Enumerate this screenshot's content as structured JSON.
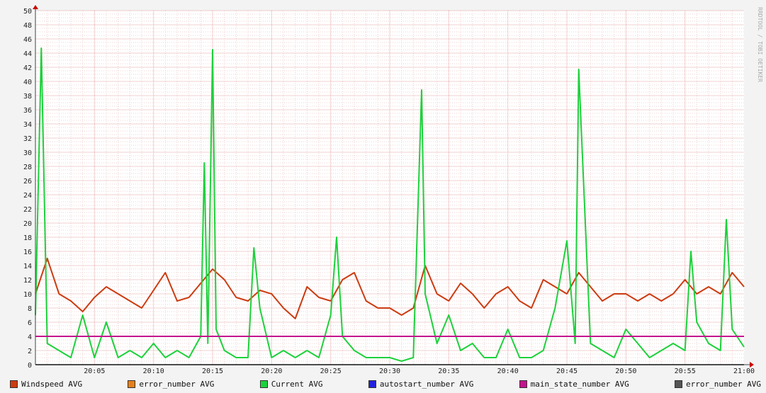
{
  "watermark": "RRDTOOL / TOBI OETIKER",
  "chart_data": {
    "type": "line",
    "title": "",
    "xlabel": "",
    "ylabel": "",
    "ylim": [
      0,
      50
    ],
    "yticks": [
      0,
      2,
      4,
      6,
      8,
      10,
      12,
      14,
      16,
      18,
      20,
      22,
      24,
      26,
      28,
      30,
      32,
      34,
      36,
      38,
      40,
      42,
      44,
      46,
      48,
      50
    ],
    "xlim": [
      "20:00",
      "21:00"
    ],
    "xticks": [
      "20:05",
      "20:10",
      "20:15",
      "20:20",
      "20:25",
      "20:30",
      "20:35",
      "20:40",
      "20:45",
      "20:50",
      "20:55",
      "21:00"
    ],
    "grid": true,
    "legend_position": "bottom",
    "series": [
      {
        "name": "Windspeed AVG",
        "color": "#cc3b10",
        "x": [
          "20:00",
          "20:01",
          "20:02",
          "20:03",
          "20:04",
          "20:05",
          "20:06",
          "20:07",
          "20:08",
          "20:09",
          "20:10",
          "20:11",
          "20:12",
          "20:13",
          "20:14",
          "20:15",
          "20:16",
          "20:17",
          "20:18",
          "20:19",
          "20:20",
          "20:21",
          "20:22",
          "20:23",
          "20:24",
          "20:25",
          "20:26",
          "20:27",
          "20:28",
          "20:29",
          "20:30",
          "20:31",
          "20:32",
          "20:33",
          "20:34",
          "20:35",
          "20:36",
          "20:37",
          "20:38",
          "20:39",
          "20:40",
          "20:41",
          "20:42",
          "20:43",
          "20:44",
          "20:45",
          "20:46",
          "20:47",
          "20:48",
          "20:49",
          "20:50",
          "20:51",
          "20:52",
          "20:53",
          "20:54",
          "20:55",
          "20:56",
          "20:57",
          "20:58",
          "20:59",
          "21:00"
        ],
        "values": [
          10,
          15,
          10,
          9,
          7.5,
          9.5,
          11,
          10,
          9,
          8,
          10.5,
          13,
          9,
          9.5,
          11.5,
          13.5,
          12,
          9.5,
          9,
          10.5,
          10,
          8,
          6.5,
          11,
          9.5,
          9,
          12,
          13,
          9,
          8,
          8,
          7,
          8,
          14,
          10,
          9,
          11.5,
          10,
          8,
          10,
          11,
          9,
          8,
          12,
          11,
          10,
          13,
          11,
          9,
          10,
          10,
          9,
          10,
          9,
          10,
          12,
          10,
          11,
          10,
          13,
          11
        ]
      },
      {
        "name": "error_number AVG",
        "color": "#e5801a",
        "x": [
          "20:00",
          "21:00"
        ],
        "values": [
          0,
          0
        ]
      },
      {
        "name": "Current AVG",
        "color": "#1dd13b",
        "x": [
          "20:00",
          "20:00.5",
          "20:01",
          "20:02",
          "20:03",
          "20:04",
          "20:05",
          "20:06",
          "20:07",
          "20:08",
          "20:09",
          "20:10",
          "20:11",
          "20:12",
          "20:13",
          "20:14",
          "20:14.3",
          "20:14.6",
          "20:15",
          "20:15.3",
          "20:16",
          "20:17",
          "20:18",
          "20:18.5",
          "20:19",
          "20:20",
          "20:21",
          "20:22",
          "20:23",
          "20:24",
          "20:25",
          "20:25.5",
          "20:26",
          "20:27",
          "20:28",
          "20:29",
          "20:30",
          "20:31",
          "20:32",
          "20:32.7",
          "20:33",
          "20:34",
          "20:35",
          "20:36",
          "20:37",
          "20:38",
          "20:39",
          "20:40",
          "20:41",
          "20:42",
          "20:43",
          "20:44",
          "20:45",
          "20:45.7",
          "20:46",
          "20:47",
          "20:48",
          "20:49",
          "20:50",
          "20:51",
          "20:52",
          "20:53",
          "20:54",
          "20:55",
          "20:55.5",
          "20:56",
          "20:57",
          "20:58",
          "20:58.5",
          "20:59",
          "21:00"
        ],
        "values": [
          7,
          44.7,
          3,
          2,
          1,
          7,
          1,
          6,
          1,
          2,
          1,
          3,
          1,
          2,
          1,
          4,
          28.5,
          3,
          44.5,
          5,
          2,
          1,
          1,
          16.5,
          8,
          1,
          2,
          1,
          2,
          1,
          7,
          18,
          4,
          2,
          1,
          1,
          1,
          0.5,
          1,
          38.8,
          10,
          3,
          7,
          2,
          3,
          1,
          1,
          5,
          1,
          1,
          2,
          8,
          17.5,
          3,
          41.7,
          3,
          2,
          1,
          5,
          3,
          1,
          2,
          3,
          2,
          16,
          6,
          3,
          2,
          20.5,
          5,
          2.5
        ]
      },
      {
        "name": "autostart_number AVG",
        "color": "#2222dd",
        "x": [
          "20:00",
          "21:00"
        ],
        "values": [
          4,
          4
        ]
      },
      {
        "name": "main_state_number AVG",
        "color": "#c4148c",
        "x": [
          "20:00",
          "21:00"
        ],
        "values": [
          4,
          4
        ]
      },
      {
        "name": "error_number AVG",
        "color": "#555555",
        "x": [
          "20:00",
          "21:00"
        ],
        "values": [
          0,
          0
        ]
      }
    ]
  }
}
